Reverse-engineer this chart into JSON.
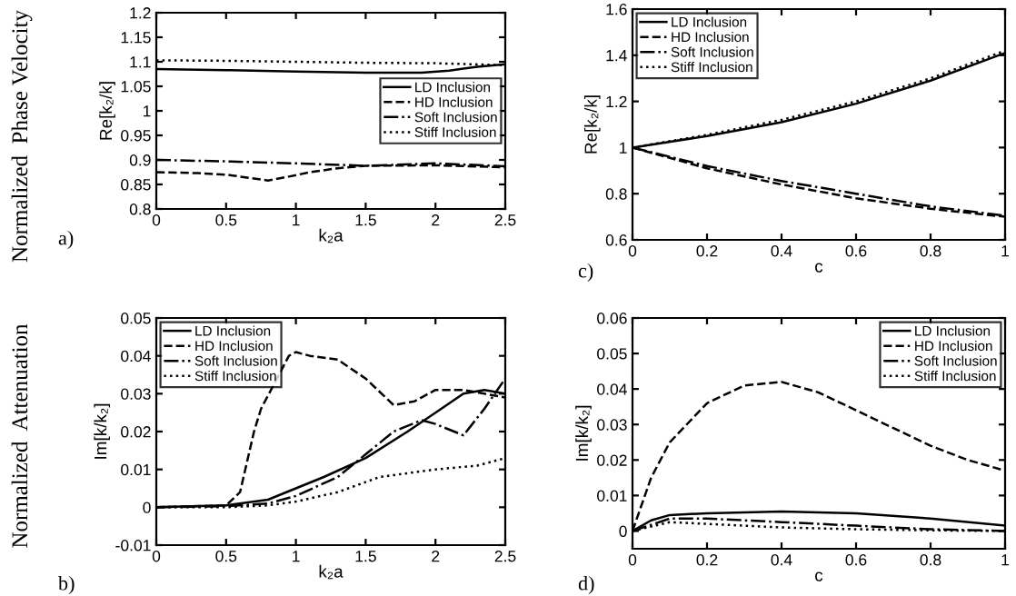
{
  "chart_data": [
    {
      "type": "line",
      "xlabel": "k₂a",
      "ylabel": "Re[k₂/k]",
      "xlim": [
        0,
        2.5
      ],
      "xticks": [
        0,
        0.5,
        1,
        1.5,
        2,
        2.5
      ],
      "ylim": [
        0.8,
        1.2
      ],
      "yticks": [
        0.8,
        0.85,
        0.9,
        0.95,
        1,
        1.05,
        1.1,
        1.15,
        1.2
      ],
      "legend": "right",
      "grid": false,
      "annotations": [
        "Normalized  Phase Velocity",
        "a)"
      ],
      "series": [
        {
          "name": "LD Inclusion",
          "color": "#000000",
          "line_style": "solid",
          "x": [
            0,
            0.5,
            1,
            1.5,
            1.9,
            2.1,
            2.3,
            2.5
          ],
          "values": [
            1.085,
            1.083,
            1.08,
            1.078,
            1.078,
            1.082,
            1.09,
            1.095
          ]
        },
        {
          "name": "HD Inclusion",
          "color": "#000000",
          "line_style": "dashed",
          "x": [
            0,
            0.3,
            0.5,
            0.65,
            0.8,
            0.95,
            1.1,
            1.3,
            1.5,
            2,
            2.5
          ],
          "values": [
            0.875,
            0.873,
            0.87,
            0.864,
            0.858,
            0.866,
            0.875,
            0.883,
            0.888,
            0.889,
            0.885
          ]
        },
        {
          "name": "Soft Inclusion",
          "color": "#000000",
          "line_style": "dashdot",
          "x": [
            0,
            0.5,
            1,
            1.5,
            2,
            2.5
          ],
          "values": [
            0.9,
            0.897,
            0.893,
            0.888,
            0.893,
            0.887
          ]
        },
        {
          "name": "Stiff Inclusion",
          "color": "#000000",
          "line_style": "dotted",
          "x": [
            0,
            0.5,
            1,
            1.5,
            2,
            2.5
          ],
          "values": [
            1.103,
            1.102,
            1.1,
            1.098,
            1.097,
            1.093
          ]
        }
      ]
    },
    {
      "type": "line",
      "xlabel": "k₂a",
      "ylabel": "Im[k/k₂]",
      "xlim": [
        0,
        2.5
      ],
      "xticks": [
        0,
        0.5,
        1,
        1.5,
        2,
        2.5
      ],
      "ylim": [
        -0.01,
        0.05
      ],
      "yticks": [
        -0.01,
        0,
        0.01,
        0.02,
        0.03,
        0.04,
        0.05
      ],
      "legend": "top left",
      "grid": false,
      "annotations": [
        "Normalized  Attenuation",
        "b)"
      ],
      "series": [
        {
          "name": "LD Inclusion",
          "color": "#000000",
          "line_style": "solid",
          "x": [
            0,
            0.5,
            0.8,
            1,
            1.2,
            1.5,
            1.8,
            2,
            2.2,
            2.35,
            2.5
          ],
          "values": [
            0,
            0.0005,
            0.002,
            0.005,
            0.008,
            0.013,
            0.02,
            0.025,
            0.03,
            0.031,
            0.03
          ]
        },
        {
          "name": "HD Inclusion",
          "color": "#000000",
          "line_style": "dashed",
          "x": [
            0,
            0.5,
            0.6,
            0.7,
            0.75,
            0.95,
            1,
            1.1,
            1.3,
            1.5,
            1.7,
            1.85,
            2,
            2.2,
            2.35,
            2.5
          ],
          "values": [
            0,
            0.0005,
            0.004,
            0.02,
            0.026,
            0.04,
            0.041,
            0.04,
            0.039,
            0.034,
            0.027,
            0.028,
            0.031,
            0.031,
            0.03,
            0.029
          ]
        },
        {
          "name": "Soft Inclusion",
          "color": "#000000",
          "line_style": "dashdot",
          "x": [
            0,
            0.5,
            0.8,
            1,
            1.3,
            1.5,
            1.7,
            1.9,
            2,
            2.2,
            2.35,
            2.5
          ],
          "values": [
            0,
            0.0003,
            0.001,
            0.003,
            0.008,
            0.014,
            0.02,
            0.023,
            0.022,
            0.019,
            0.026,
            0.034
          ]
        },
        {
          "name": "Stiff Inclusion",
          "color": "#000000",
          "line_style": "dotted",
          "x": [
            0,
            0.5,
            0.8,
            1,
            1.3,
            1.6,
            2,
            2.3,
            2.5
          ],
          "values": [
            0,
            0,
            0.0005,
            0.0015,
            0.004,
            0.008,
            0.01,
            0.011,
            0.013
          ]
        }
      ]
    },
    {
      "type": "line",
      "xlabel": "c",
      "ylabel": "Re[k₂/k]",
      "xlim": [
        0,
        1
      ],
      "xticks": [
        0,
        0.2,
        0.4,
        0.6,
        0.8,
        1
      ],
      "ylim": [
        0.6,
        1.6
      ],
      "yticks": [
        0.6,
        0.8,
        1,
        1.2,
        1.4,
        1.6
      ],
      "legend": "top left",
      "grid": false,
      "annotations": [
        "c)"
      ],
      "series": [
        {
          "name": "LD Inclusion",
          "color": "#000000",
          "line_style": "solid",
          "x": [
            0,
            0.2,
            0.4,
            0.6,
            0.8,
            1
          ],
          "values": [
            1,
            1.05,
            1.11,
            1.19,
            1.29,
            1.41
          ]
        },
        {
          "name": "HD Inclusion",
          "color": "#000000",
          "line_style": "dashed",
          "x": [
            0,
            0.2,
            0.4,
            0.6,
            0.8,
            1
          ],
          "values": [
            1,
            0.91,
            0.84,
            0.78,
            0.735,
            0.7
          ]
        },
        {
          "name": "Soft Inclusion",
          "color": "#000000",
          "line_style": "dashdot",
          "x": [
            0,
            0.2,
            0.4,
            0.6,
            0.8,
            1
          ],
          "values": [
            1,
            0.92,
            0.855,
            0.8,
            0.745,
            0.705
          ]
        },
        {
          "name": "Stiff Inclusion",
          "color": "#000000",
          "line_style": "dotted",
          "x": [
            0,
            0.2,
            0.4,
            0.6,
            0.8,
            1
          ],
          "values": [
            1,
            1.055,
            1.12,
            1.2,
            1.3,
            1.42
          ]
        }
      ]
    },
    {
      "type": "line",
      "xlabel": "c",
      "ylabel": "Im[k/k₂]",
      "xlim": [
        0,
        1
      ],
      "xticks": [
        0,
        0.2,
        0.4,
        0.6,
        0.8,
        1
      ],
      "ylim": [
        -0.005,
        0.06
      ],
      "yticks": [
        0,
        0.01,
        0.02,
        0.03,
        0.04,
        0.05,
        0.06
      ],
      "legend": "top right",
      "grid": false,
      "annotations": [
        "d)"
      ],
      "series": [
        {
          "name": "LD Inclusion",
          "color": "#000000",
          "line_style": "solid",
          "x": [
            0,
            0.05,
            0.1,
            0.2,
            0.4,
            0.6,
            0.8,
            1
          ],
          "values": [
            0,
            0.003,
            0.0045,
            0.005,
            0.0055,
            0.005,
            0.0035,
            0.0015
          ]
        },
        {
          "name": "HD Inclusion",
          "color": "#000000",
          "line_style": "dashed",
          "x": [
            0,
            0.05,
            0.1,
            0.2,
            0.3,
            0.4,
            0.5,
            0.6,
            0.7,
            0.8,
            0.9,
            1
          ],
          "values": [
            0,
            0.015,
            0.025,
            0.036,
            0.041,
            0.042,
            0.039,
            0.034,
            0.029,
            0.024,
            0.02,
            0.017
          ]
        },
        {
          "name": "Soft Inclusion",
          "color": "#000000",
          "line_style": "dashdot",
          "x": [
            0,
            0.1,
            0.2,
            0.4,
            0.6,
            0.8,
            1
          ],
          "values": [
            0,
            0.0035,
            0.0035,
            0.0025,
            0.0015,
            0.0005,
            0
          ]
        },
        {
          "name": "Stiff Inclusion",
          "color": "#000000",
          "line_style": "dotted",
          "x": [
            0,
            0.1,
            0.2,
            0.4,
            0.6,
            0.8,
            1
          ],
          "values": [
            0,
            0.0025,
            0.002,
            0.001,
            0.0005,
            0.0002,
            0
          ]
        }
      ]
    }
  ]
}
